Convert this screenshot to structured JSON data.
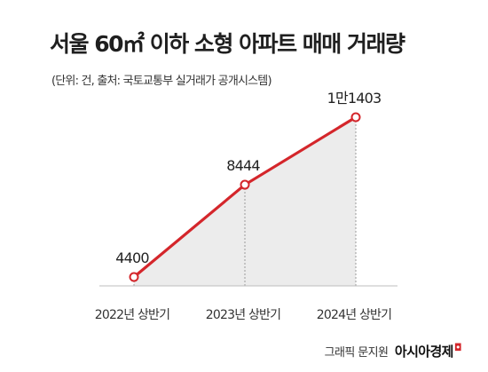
{
  "chart_data": {
    "type": "line",
    "title": "서울 60㎡ 이하 소형 아파트 매매 거래량",
    "subtitle": "(단위: 건, 출처: 국토교통부 실거래가 공개시스템)",
    "categories": [
      "2022년 상반기",
      "2023년 상반기",
      "2024년 상반기"
    ],
    "values": [
      4400,
      8444,
      11403
    ],
    "data_labels": [
      "4400",
      "8444",
      "1만1403"
    ],
    "colors": {
      "line": "#d4262b",
      "area_fill": "#ececec",
      "point_fill": "#ffffff"
    }
  },
  "credit": {
    "author": "그래픽 문지원",
    "brand": "아시아경제"
  }
}
